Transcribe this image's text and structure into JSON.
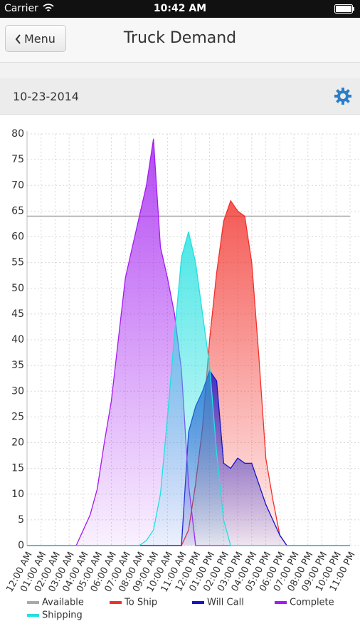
{
  "status_bar": {
    "carrier": "Carrier",
    "time": "10:42 AM"
  },
  "nav": {
    "back": "Menu",
    "title": "Truck Demand"
  },
  "date": "10-23-2014",
  "chart_data": {
    "type": "area",
    "x": [
      0,
      0.5,
      1,
      1.5,
      2,
      2.5,
      3,
      3.5,
      4,
      4.5,
      5,
      5.5,
      6,
      6.5,
      7,
      7.5,
      8,
      8.5,
      9,
      9.5,
      10,
      10.5,
      11,
      11.5,
      12,
      12.5,
      13,
      13.5,
      14,
      14.5,
      15,
      15.5,
      16,
      16.5,
      17,
      17.5,
      18,
      18.5,
      19,
      19.5,
      20,
      20.5,
      21,
      21.5,
      22,
      22.5,
      23
    ],
    "xlim": [
      0,
      23
    ],
    "xticks": [
      {
        "value": 0,
        "label": "12:00 AM"
      },
      {
        "value": 1,
        "label": "01:00 AM"
      },
      {
        "value": 2,
        "label": "02:00 AM"
      },
      {
        "value": 3,
        "label": "03:00 AM"
      },
      {
        "value": 4,
        "label": "04:00 AM"
      },
      {
        "value": 5,
        "label": "05:00 AM"
      },
      {
        "value": 6,
        "label": "06:00 AM"
      },
      {
        "value": 7,
        "label": "07:00 AM"
      },
      {
        "value": 8,
        "label": "08:00 AM"
      },
      {
        "value": 9,
        "label": "09:00 AM"
      },
      {
        "value": 10,
        "label": "10:00 AM"
      },
      {
        "value": 11,
        "label": "11:00 AM"
      },
      {
        "value": 12,
        "label": "12:00 PM"
      },
      {
        "value": 13,
        "label": "01:00 PM"
      },
      {
        "value": 14,
        "label": "02:00 PM"
      },
      {
        "value": 15,
        "label": "03:00 PM"
      },
      {
        "value": 16,
        "label": "04:00 PM"
      },
      {
        "value": 17,
        "label": "05:00 PM"
      },
      {
        "value": 18,
        "label": "06:00 PM"
      },
      {
        "value": 19,
        "label": "07:00 PM"
      },
      {
        "value": 20,
        "label": "08:00 PM"
      },
      {
        "value": 21,
        "label": "09:00 PM"
      },
      {
        "value": 22,
        "label": "10:00 PM"
      },
      {
        "value": 23,
        "label": "11:00 PM"
      }
    ],
    "ylim": [
      0,
      80
    ],
    "yticks": [
      0,
      5,
      10,
      15,
      20,
      25,
      30,
      35,
      40,
      45,
      50,
      55,
      60,
      65,
      70,
      75,
      80
    ],
    "grid": true,
    "legend": "bottom",
    "series": [
      {
        "name": "Available",
        "color": "#a9a9a9",
        "filled": false,
        "values": [
          64,
          64,
          64,
          64,
          64,
          64,
          64,
          64,
          64,
          64,
          64,
          64,
          64,
          64,
          64,
          64,
          64,
          64,
          64,
          64,
          64,
          64,
          64,
          64,
          64,
          64,
          64,
          64,
          64,
          64,
          64,
          64,
          64,
          64,
          64,
          64,
          64,
          64,
          64,
          64,
          64,
          64,
          64,
          64,
          64,
          64,
          64
        ]
      },
      {
        "name": "To Ship",
        "color": "#f2302a",
        "filled": true,
        "values": [
          0,
          0,
          0,
          0,
          0,
          0,
          0,
          0,
          0,
          0,
          0,
          0,
          0,
          0,
          0,
          0,
          0,
          0,
          0,
          0,
          0,
          0,
          0,
          3,
          12,
          23,
          40,
          53,
          63,
          67,
          65,
          64,
          55,
          37,
          17,
          9,
          2,
          0,
          0,
          0,
          0,
          0,
          0,
          0,
          0,
          0,
          0
        ]
      },
      {
        "name": "Will Call",
        "color": "#1414c8",
        "filled": true,
        "values": [
          0,
          0,
          0,
          0,
          0,
          0,
          0,
          0,
          0,
          0,
          0,
          0,
          0,
          0,
          0,
          0,
          0,
          0,
          0,
          0,
          0,
          0,
          0,
          22,
          27,
          30,
          34,
          32,
          16,
          15,
          17,
          16,
          16,
          12,
          8,
          5,
          2,
          0,
          0,
          0,
          0,
          0,
          0,
          0,
          0,
          0,
          0
        ]
      },
      {
        "name": "Complete",
        "color": "#a21cf0",
        "filled": true,
        "values": [
          0,
          0,
          0,
          0,
          0,
          0,
          0,
          0,
          3,
          6,
          11,
          20,
          28,
          40,
          52,
          58,
          64,
          70,
          79,
          58,
          52,
          45,
          34,
          12,
          0,
          0,
          0,
          0,
          0,
          0,
          0,
          0,
          0,
          0,
          0,
          0,
          0,
          0,
          0,
          0,
          0,
          0,
          0,
          0,
          0,
          0,
          0
        ]
      },
      {
        "name": "Shipping",
        "color": "#22e0e0",
        "filled": true,
        "values": [
          0,
          0,
          0,
          0,
          0,
          0,
          0,
          0,
          0,
          0,
          0,
          0,
          0,
          0,
          0,
          0,
          0,
          1,
          3,
          10,
          25,
          41,
          56,
          61,
          55,
          45,
          35,
          18,
          5,
          0,
          0,
          0,
          0,
          0,
          0,
          0,
          0,
          0,
          0,
          0,
          0,
          0,
          0,
          0,
          0,
          0,
          0
        ]
      }
    ]
  }
}
